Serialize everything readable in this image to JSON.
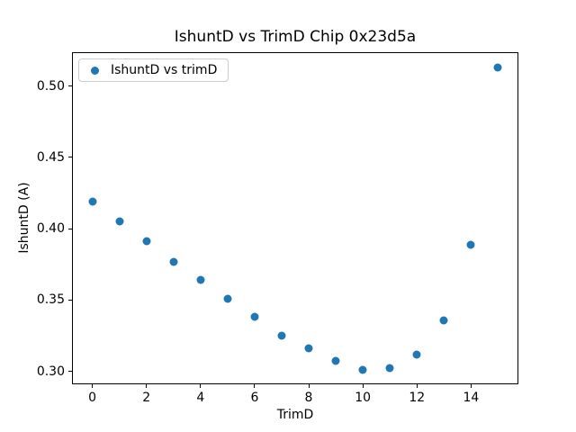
{
  "chart_data": {
    "type": "scatter",
    "title": "IshuntD vs TrimD Chip 0x23d5a",
    "xlabel": "TrimD",
    "ylabel": "IshuntD (A)",
    "series": [
      {
        "name": "IshuntD vs trimD",
        "color": "#1f77b4",
        "x": [
          0,
          1,
          2,
          3,
          4,
          5,
          6,
          7,
          8,
          9,
          10,
          11,
          12,
          13,
          14,
          15
        ],
        "y": [
          0.419,
          0.405,
          0.391,
          0.377,
          0.364,
          0.351,
          0.338,
          0.325,
          0.316,
          0.307,
          0.301,
          0.302,
          0.312,
          0.336,
          0.389,
          0.513
        ]
      }
    ],
    "xlim": [
      -0.75,
      15.75
    ],
    "ylim": [
      0.2909,
      0.5238
    ],
    "xticks": [
      0,
      2,
      4,
      6,
      8,
      10,
      12,
      14
    ],
    "yticks": [
      0.3,
      0.35,
      0.4,
      0.45,
      0.5
    ],
    "grid": false,
    "legend_position": "upper-left",
    "background_color": "#ffffff",
    "spine_color": "#000000"
  }
}
